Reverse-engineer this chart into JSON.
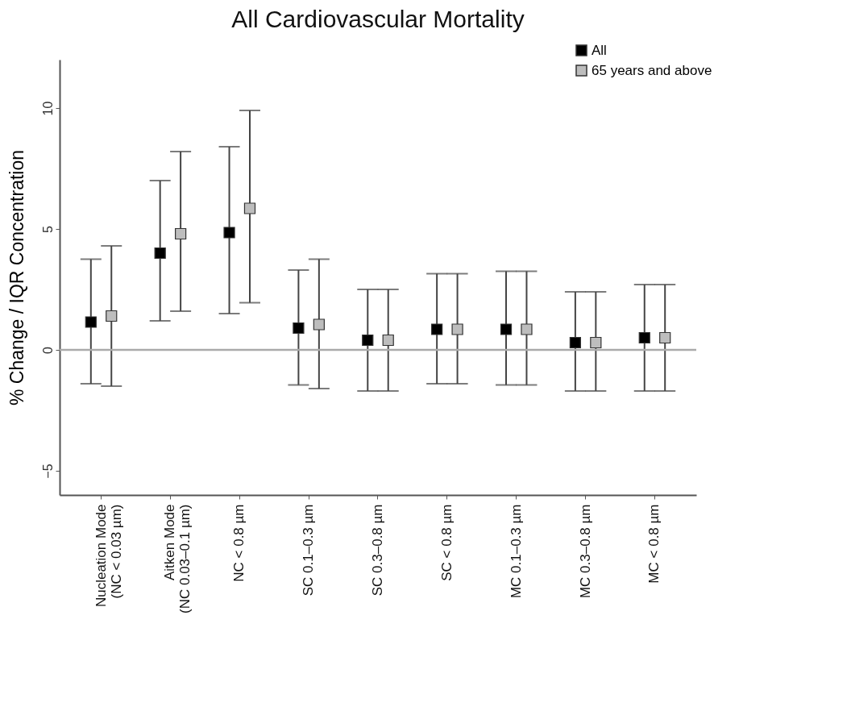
{
  "chart_data": {
    "type": "scatter",
    "title": "All Cardiovascular Mortality",
    "ylabel": "% Change / IQR Concentration",
    "categories": [
      "Nucleation Mode\n(NC < 0.03 µm)",
      "Aitken Mode\n(NC 0.03–0.1 µm)",
      "NC < 0.8 µm",
      "SC 0.1–0.3 µm",
      "SC 0.3–0.8 µm",
      "SC < 0.8 µm",
      "MC 0.1–0.3 µm",
      "MC 0.3–0.8 µm",
      "MC < 0.8 µm"
    ],
    "series": [
      {
        "name": "All",
        "color": "#000000",
        "values": [
          1.15,
          4.0,
          4.85,
          0.9,
          0.4,
          0.85,
          0.85,
          0.3,
          0.5
        ],
        "errors": [
          [
            -1.4,
            3.75
          ],
          [
            1.2,
            7.0
          ],
          [
            1.5,
            8.4
          ],
          [
            -1.45,
            3.3
          ],
          [
            -1.7,
            2.5
          ],
          [
            -1.4,
            3.15
          ],
          [
            -1.45,
            3.25
          ],
          [
            -1.7,
            2.4
          ],
          [
            -1.7,
            2.7
          ]
        ]
      },
      {
        "name": "65 years and above",
        "color": "#bdbdbd",
        "values": [
          1.4,
          4.8,
          5.85,
          1.05,
          0.4,
          0.85,
          0.85,
          0.3,
          0.5
        ],
        "errors": [
          [
            -1.5,
            4.3
          ],
          [
            1.6,
            8.2
          ],
          [
            1.95,
            9.9
          ],
          [
            -1.6,
            3.75
          ],
          [
            -1.7,
            2.5
          ],
          [
            -1.4,
            3.15
          ],
          [
            -1.45,
            3.25
          ],
          [
            -1.7,
            2.4
          ],
          [
            -1.7,
            2.7
          ]
        ]
      }
    ],
    "ylim": [
      -6,
      12
    ],
    "yticks": [
      -5,
      0,
      5,
      10
    ],
    "ref_lines": [
      {
        "axis": "y",
        "value": 0,
        "color": "#aaaaaa"
      }
    ],
    "marker": "square",
    "legend": "top right"
  }
}
